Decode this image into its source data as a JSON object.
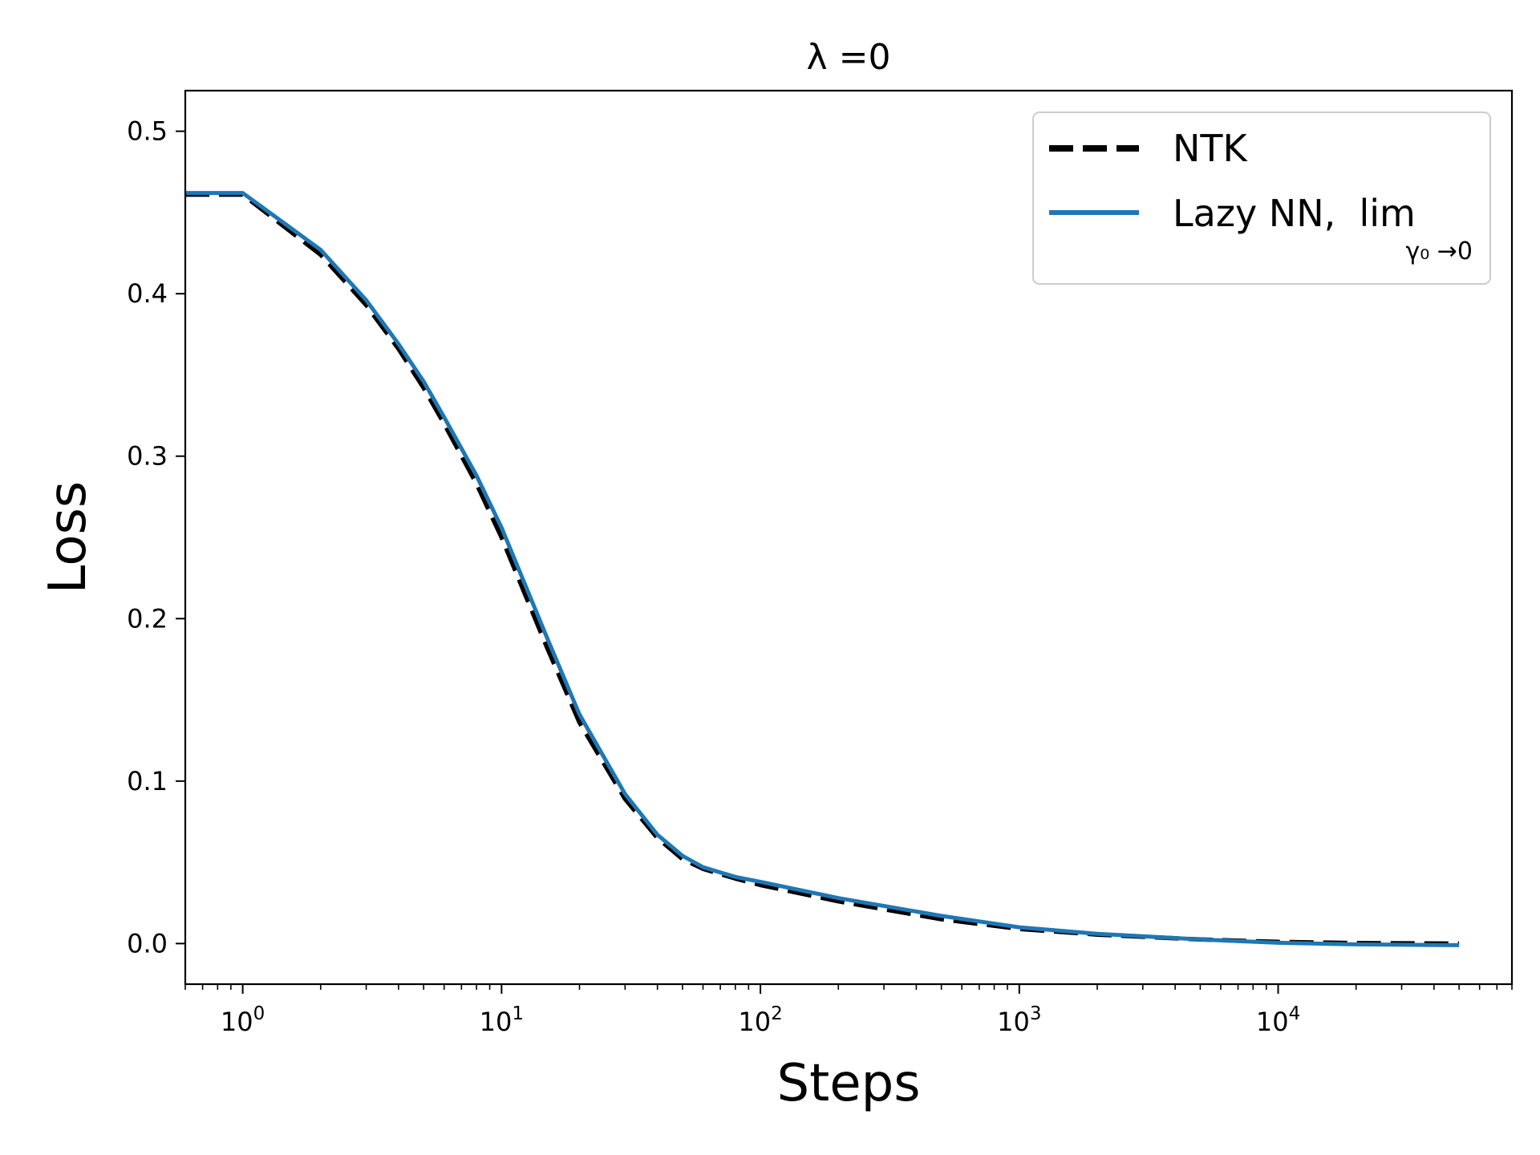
{
  "chart_data": {
    "type": "line",
    "title": "λ =0",
    "xlabel": "Steps",
    "ylabel": "Loss",
    "x_scale": "log",
    "xlim": [
      0.6,
      80000
    ],
    "ylim": [
      -0.025,
      0.525
    ],
    "x_ticks": [
      1,
      10,
      100,
      1000,
      10000
    ],
    "x_tick_labels": [
      {
        "base": "10",
        "exp": "0"
      },
      {
        "base": "10",
        "exp": "1"
      },
      {
        "base": "10",
        "exp": "2"
      },
      {
        "base": "10",
        "exp": "3"
      },
      {
        "base": "10",
        "exp": "4"
      }
    ],
    "y_ticks": [
      0.0,
      0.1,
      0.2,
      0.3,
      0.4,
      0.5
    ],
    "y_tick_labels": [
      "0.0",
      "0.1",
      "0.2",
      "0.3",
      "0.4",
      "0.5"
    ],
    "grid": false,
    "legend_position": "top-right",
    "series": [
      {
        "name": "NTK",
        "color": "#000000",
        "style": "dashed",
        "x": [
          0.6,
          1,
          2,
          3,
          4,
          5,
          6,
          8,
          10,
          15,
          20,
          30,
          40,
          50,
          60,
          80,
          100,
          200,
          500,
          1000,
          2000,
          5000,
          10000,
          20000,
          50000
        ],
        "y": [
          0.461,
          0.461,
          0.424,
          0.393,
          0.366,
          0.342,
          0.32,
          0.283,
          0.25,
          0.182,
          0.136,
          0.089,
          0.065,
          0.052,
          0.046,
          0.04,
          0.036,
          0.026,
          0.015,
          0.009,
          0.0055,
          0.0025,
          0.001,
          0.0003,
          0.0
        ]
      },
      {
        "name": "Lazy NN,  lim",
        "name_subscript": "γ₀ →0",
        "color": "#1f77b4",
        "style": "solid",
        "x": [
          0.6,
          1,
          2,
          3,
          4,
          5,
          6,
          8,
          10,
          15,
          20,
          30,
          40,
          50,
          60,
          80,
          100,
          200,
          500,
          1000,
          2000,
          5000,
          10000,
          20000,
          50000
        ],
        "y": [
          0.462,
          0.462,
          0.427,
          0.396,
          0.369,
          0.346,
          0.324,
          0.288,
          0.256,
          0.188,
          0.141,
          0.092,
          0.067,
          0.054,
          0.047,
          0.041,
          0.038,
          0.028,
          0.017,
          0.01,
          0.006,
          0.0025,
          0.0005,
          -0.0005,
          -0.001
        ]
      }
    ]
  }
}
